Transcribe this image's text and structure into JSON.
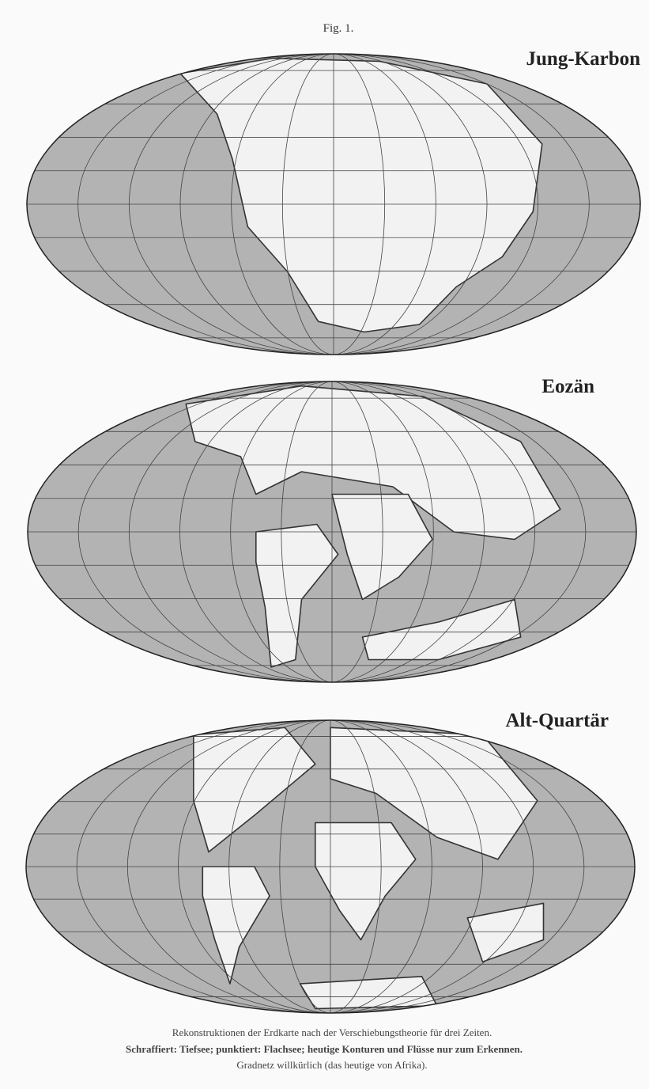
{
  "figure_label": "Fig. 1.",
  "maps": [
    {
      "title": "Jung-Karbon"
    },
    {
      "title": "Eozän"
    },
    {
      "title": "Alt-Quartär"
    }
  ],
  "caption": {
    "lines": [
      "Rekonstruktionen der Erdkarte nach der Verschiebungstheorie für drei Zeiten.",
      "Schraffiert: Tiefsee; punktiert: Flachsee; heutige Konturen und Flüsse nur zum Erkennen.",
      "Gradnetz willkürlich (das heutige von Afrika)."
    ]
  }
}
